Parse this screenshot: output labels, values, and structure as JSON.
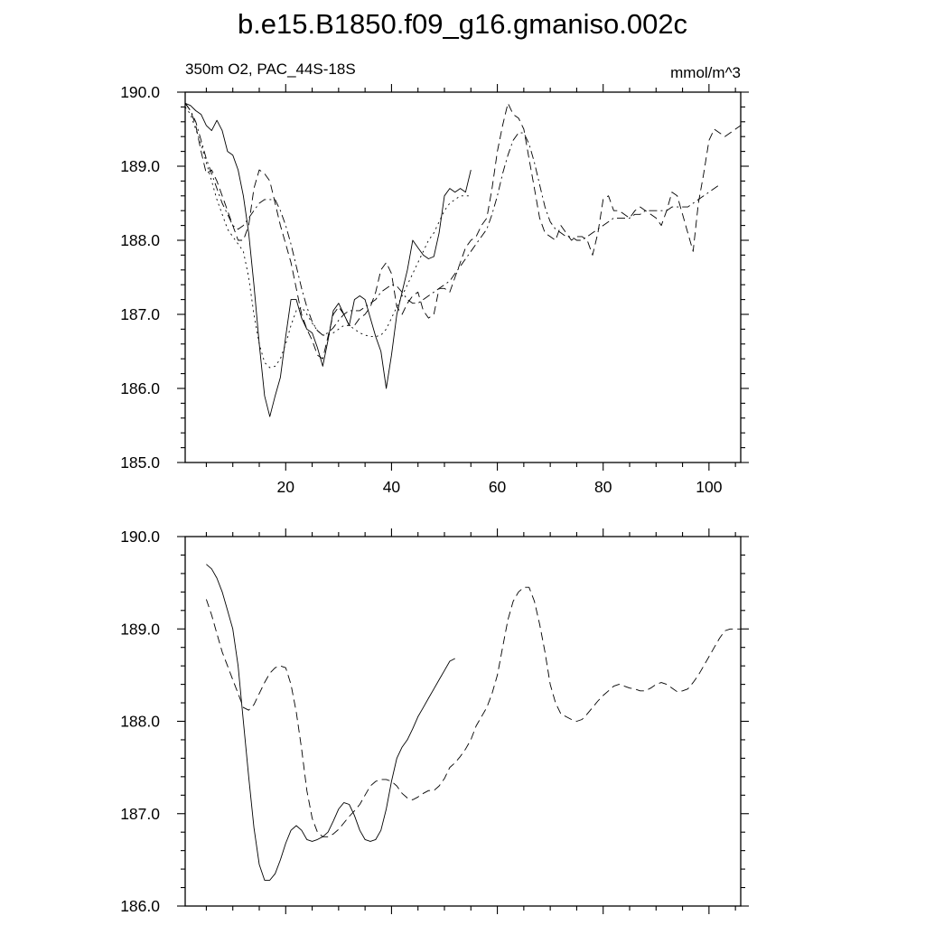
{
  "figure_title": "b.e15.B1850.f09_g16.gmaniso.002c",
  "chart_data": [
    {
      "type": "line",
      "title": "",
      "left_label": "350m O2, PAC_44S-18S",
      "right_label": "mmol/m^3",
      "xlabel": "",
      "ylabel": "",
      "xlim": [
        1,
        106
      ],
      "ylim": [
        185.0,
        190.0
      ],
      "x_ticks": [
        20,
        40,
        60,
        80,
        100
      ],
      "x_tick_labels": [
        "20",
        "40",
        "60",
        "80",
        "100"
      ],
      "y_ticks": [
        185.0,
        186.0,
        187.0,
        188.0,
        189.0,
        190.0
      ],
      "y_tick_labels": [
        "185.0",
        "186.0",
        "187.0",
        "188.0",
        "189.0",
        "190.0"
      ],
      "grid": false,
      "series": [
        {
          "style": "solid",
          "x": [
            1,
            2,
            3,
            4,
            5,
            6,
            7,
            8,
            9,
            10,
            11,
            12,
            13,
            14,
            15,
            16,
            17,
            18,
            19,
            20,
            21,
            22,
            23,
            24,
            25,
            26,
            27,
            28,
            29,
            30,
            31,
            32,
            33,
            34,
            35,
            36,
            37,
            38,
            39,
            40,
            41,
            42,
            43,
            44,
            45,
            46,
            47,
            48,
            49,
            50,
            51,
            52,
            53,
            54,
            55
          ],
          "y": [
            189.85,
            189.82,
            189.75,
            189.7,
            189.55,
            189.48,
            189.62,
            189.48,
            189.2,
            189.15,
            188.95,
            188.6,
            188.1,
            187.4,
            186.6,
            185.9,
            185.62,
            185.9,
            186.15,
            186.7,
            187.2,
            187.2,
            186.95,
            186.8,
            186.75,
            186.55,
            186.3,
            186.65,
            187.05,
            187.15,
            187.0,
            186.85,
            187.2,
            187.25,
            187.2,
            186.95,
            186.7,
            186.5,
            186.0,
            186.45,
            187.0,
            187.3,
            187.6,
            188.0,
            187.9,
            187.8,
            187.75,
            187.78,
            188.1,
            188.6,
            188.7,
            188.65,
            188.7,
            188.65,
            188.95
          ]
        },
        {
          "style": "dash",
          "x": [
            1,
            2,
            3,
            4,
            5,
            6,
            7,
            8,
            9,
            10,
            11,
            12,
            13,
            14,
            15,
            16,
            17,
            18,
            19,
            20,
            21,
            22,
            23,
            24,
            25,
            26,
            27,
            28,
            29,
            30,
            31,
            32,
            33,
            34,
            35,
            36,
            37,
            38,
            39,
            40,
            41,
            42,
            43,
            44,
            45,
            46,
            47,
            48,
            49,
            50,
            51,
            52,
            53,
            54,
            55,
            56,
            57,
            58,
            59,
            60,
            61,
            62,
            63,
            64,
            65,
            66,
            67,
            68,
            69,
            70,
            71,
            72,
            73,
            74,
            75,
            76,
            77,
            78,
            79,
            80,
            81,
            82,
            83,
            84,
            85,
            86,
            87,
            88,
            89,
            90,
            91,
            92,
            93,
            94,
            95,
            96,
            97,
            98,
            99,
            100,
            101,
            102,
            103,
            104,
            105,
            106
          ],
          "y": [
            189.85,
            189.75,
            189.55,
            189.2,
            188.9,
            188.95,
            188.8,
            188.6,
            188.4,
            188.2,
            188.0,
            188.0,
            188.2,
            188.7,
            188.95,
            188.9,
            188.8,
            188.5,
            188.2,
            187.95,
            187.7,
            187.35,
            187.0,
            186.8,
            186.65,
            186.45,
            186.4,
            186.7,
            187.0,
            187.1,
            187.0,
            186.85,
            186.85,
            186.95,
            187.0,
            187.1,
            187.3,
            187.6,
            187.7,
            187.55,
            187.1,
            187.0,
            187.15,
            187.25,
            187.3,
            187.05,
            186.95,
            187.0,
            187.35,
            187.35,
            187.3,
            187.5,
            187.7,
            187.9,
            188.0,
            188.05,
            188.2,
            188.3,
            188.7,
            189.2,
            189.55,
            189.85,
            189.7,
            189.65,
            189.5,
            189.1,
            188.7,
            188.3,
            188.1,
            188.05,
            188.0,
            188.2,
            188.1,
            188.0,
            188.05,
            188.05,
            188.0,
            187.8,
            188.1,
            188.55,
            188.6,
            188.4,
            188.4,
            188.35,
            188.3,
            188.4,
            188.45,
            188.4,
            188.35,
            188.3,
            188.2,
            188.4,
            188.65,
            188.6,
            188.35,
            188.1,
            187.85,
            188.5,
            188.9,
            189.35,
            189.5,
            189.45,
            189.4,
            189.45,
            189.5,
            189.55
          ]
        },
        {
          "style": "dot",
          "x": [
            1,
            2,
            3,
            4,
            5,
            6,
            7,
            8,
            9,
            10,
            11,
            12,
            13,
            14,
            15,
            16,
            17,
            18,
            19,
            20,
            21,
            22,
            23,
            24,
            25,
            26,
            27,
            28,
            29,
            30,
            31,
            32,
            33,
            34,
            35,
            36,
            37,
            38,
            39,
            40,
            41,
            42,
            43,
            44,
            45,
            46,
            47,
            48,
            49,
            50,
            51,
            52,
            53,
            54,
            55
          ],
          "y": [
            189.8,
            189.7,
            189.5,
            189.3,
            189.05,
            188.8,
            188.55,
            188.35,
            188.15,
            188.05,
            187.95,
            187.85,
            187.5,
            187.0,
            186.6,
            186.35,
            186.28,
            186.3,
            186.4,
            186.6,
            186.85,
            187.05,
            187.1,
            187.0,
            186.88,
            186.78,
            186.72,
            186.72,
            186.75,
            186.8,
            186.85,
            186.85,
            186.8,
            186.75,
            186.72,
            186.7,
            186.7,
            186.72,
            186.8,
            186.95,
            187.1,
            187.25,
            187.4,
            187.55,
            187.7,
            187.85,
            188.0,
            188.1,
            188.25,
            188.4,
            188.5,
            188.55,
            188.6,
            188.6,
            188.6
          ]
        },
        {
          "style": "dashdot",
          "x": [
            1,
            2,
            3,
            4,
            5,
            6,
            7,
            8,
            9,
            10,
            11,
            12,
            13,
            14,
            15,
            16,
            17,
            18,
            19,
            20,
            21,
            22,
            23,
            24,
            25,
            26,
            27,
            28,
            29,
            30,
            31,
            32,
            33,
            34,
            35,
            36,
            37,
            38,
            39,
            40,
            41,
            42,
            43,
            44,
            45,
            46,
            47,
            48,
            49,
            50,
            51,
            52,
            53,
            54,
            55,
            56,
            57,
            58,
            59,
            60,
            61,
            62,
            63,
            64,
            65,
            66,
            67,
            68,
            69,
            70,
            71,
            72,
            73,
            74,
            75,
            76,
            77,
            78,
            79,
            80,
            81,
            82,
            83,
            84,
            85,
            86,
            87,
            88,
            89,
            90,
            91,
            92,
            93,
            94,
            95,
            96,
            97,
            98,
            99,
            100,
            101,
            102
          ],
          "y": [
            189.85,
            189.75,
            189.6,
            189.35,
            189.1,
            188.9,
            188.7,
            188.5,
            188.35,
            188.2,
            188.15,
            188.2,
            188.3,
            188.4,
            188.5,
            188.55,
            188.55,
            188.55,
            188.4,
            188.2,
            187.95,
            187.65,
            187.35,
            187.1,
            186.9,
            186.78,
            186.72,
            186.75,
            186.82,
            186.92,
            187.0,
            187.05,
            187.05,
            187.05,
            187.1,
            187.15,
            187.2,
            187.3,
            187.35,
            187.4,
            187.38,
            187.3,
            187.2,
            187.15,
            187.15,
            187.2,
            187.25,
            187.3,
            187.35,
            187.4,
            187.45,
            187.55,
            187.65,
            187.75,
            187.85,
            187.95,
            188.05,
            188.15,
            188.35,
            188.6,
            188.9,
            189.15,
            189.35,
            189.45,
            189.45,
            189.3,
            189.05,
            188.75,
            188.45,
            188.25,
            188.15,
            188.1,
            188.05,
            188.05,
            188.0,
            188.0,
            188.05,
            188.1,
            188.15,
            188.2,
            188.25,
            188.3,
            188.3,
            188.3,
            188.3,
            188.35,
            188.35,
            188.4,
            188.4,
            188.4,
            188.4,
            188.4,
            188.45,
            188.45,
            188.45,
            188.45,
            188.5,
            188.55,
            188.6,
            188.65,
            188.7,
            188.75
          ]
        }
      ]
    },
    {
      "type": "line",
      "title": "",
      "xlabel": "",
      "ylabel": "",
      "xlim": [
        1,
        106
      ],
      "ylim": [
        186.0,
        190.0
      ],
      "x_ticks": [
        20,
        40,
        60,
        80,
        100
      ],
      "y_ticks": [
        186.0,
        187.0,
        188.0,
        189.0,
        190.0
      ],
      "y_tick_labels": [
        "186.0",
        "187.0",
        "188.0",
        "189.0",
        "190.0"
      ],
      "grid": false,
      "series": [
        {
          "style": "solid",
          "x": [
            5,
            6,
            7,
            8,
            9,
            10,
            11,
            12,
            13,
            14,
            15,
            16,
            17,
            18,
            19,
            20,
            21,
            22,
            23,
            24,
            25,
            26,
            27,
            28,
            29,
            30,
            31,
            32,
            33,
            34,
            35,
            36,
            37,
            38,
            39,
            40,
            41,
            42,
            43,
            44,
            45,
            46,
            47,
            48,
            49,
            50,
            51,
            52
          ],
          "y": [
            189.7,
            189.65,
            189.55,
            189.4,
            189.2,
            189.0,
            188.6,
            188.0,
            187.4,
            186.85,
            186.45,
            186.28,
            186.28,
            186.35,
            186.5,
            186.68,
            186.82,
            186.87,
            186.82,
            186.72,
            186.7,
            186.72,
            186.75,
            186.8,
            186.92,
            187.05,
            187.12,
            187.1,
            186.98,
            186.82,
            186.72,
            186.7,
            186.72,
            186.82,
            187.05,
            187.35,
            187.6,
            187.72,
            187.8,
            187.92,
            188.05,
            188.15,
            188.25,
            188.35,
            188.45,
            188.55,
            188.65,
            188.68
          ]
        },
        {
          "style": "dash",
          "x": [
            5,
            6,
            7,
            8,
            9,
            10,
            11,
            12,
            13,
            14,
            15,
            16,
            17,
            18,
            19,
            20,
            21,
            22,
            23,
            24,
            25,
            26,
            27,
            28,
            29,
            30,
            31,
            32,
            33,
            34,
            35,
            36,
            37,
            38,
            39,
            40,
            41,
            42,
            43,
            44,
            45,
            46,
            47,
            48,
            49,
            50,
            51,
            52,
            53,
            54,
            55,
            56,
            57,
            58,
            59,
            60,
            61,
            62,
            63,
            64,
            65,
            66,
            67,
            68,
            69,
            70,
            71,
            72,
            73,
            74,
            75,
            76,
            77,
            78,
            79,
            80,
            81,
            82,
            83,
            84,
            85,
            86,
            87,
            88,
            89,
            90,
            91,
            92,
            93,
            94,
            95,
            96,
            97,
            98,
            99,
            100,
            101,
            102,
            103,
            104,
            105,
            106
          ],
          "y": [
            189.32,
            189.15,
            188.95,
            188.75,
            188.6,
            188.45,
            188.3,
            188.15,
            188.12,
            188.18,
            188.3,
            188.42,
            188.52,
            188.58,
            188.6,
            188.58,
            188.4,
            188.1,
            187.7,
            187.25,
            186.95,
            186.8,
            186.75,
            186.75,
            186.78,
            186.83,
            186.9,
            186.97,
            187.03,
            187.1,
            187.2,
            187.3,
            187.35,
            187.37,
            187.37,
            187.35,
            187.3,
            187.22,
            187.17,
            187.15,
            187.18,
            187.22,
            187.25,
            187.25,
            187.3,
            187.38,
            187.5,
            187.55,
            187.62,
            187.7,
            187.8,
            187.95,
            188.05,
            188.15,
            188.3,
            188.5,
            188.8,
            189.1,
            189.3,
            189.4,
            189.45,
            189.45,
            189.3,
            189.05,
            188.75,
            188.4,
            188.2,
            188.08,
            188.05,
            188.02,
            188.0,
            188.02,
            188.08,
            188.15,
            188.22,
            188.28,
            188.33,
            188.38,
            188.4,
            188.38,
            188.36,
            188.35,
            188.33,
            188.33,
            188.36,
            188.4,
            188.42,
            188.4,
            188.36,
            188.32,
            188.33,
            188.35,
            188.42,
            188.5,
            188.6,
            188.7,
            188.8,
            188.9,
            188.98,
            189.0,
            189.0,
            189.0
          ]
        }
      ]
    }
  ]
}
